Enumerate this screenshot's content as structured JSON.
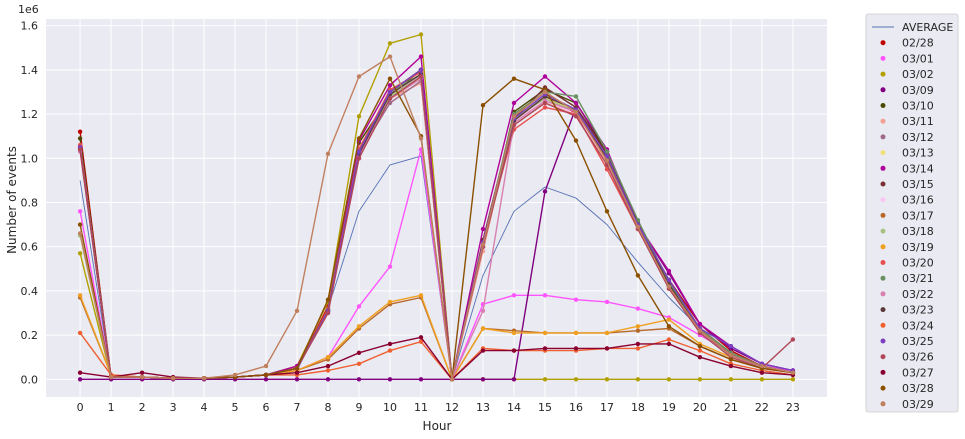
{
  "chart_data": {
    "type": "line",
    "xlabel": "Hour",
    "ylabel": "Number of events",
    "y_multiplier_label": "1e6",
    "x": [
      0,
      1,
      2,
      3,
      4,
      5,
      6,
      7,
      8,
      9,
      10,
      11,
      12,
      13,
      14,
      15,
      16,
      17,
      18,
      19,
      20,
      21,
      22,
      23
    ],
    "xlim": [
      -1.1,
      24.1
    ],
    "ylim": [
      -0.08,
      1.63
    ],
    "y_ticks": [
      "0.0",
      "0.2",
      "0.4",
      "0.6",
      "0.8",
      "1.0",
      "1.2",
      "1.4",
      "1.6"
    ],
    "y_tick_values": [
      0,
      0.2,
      0.4,
      0.6,
      0.8,
      1.0,
      1.2,
      1.4,
      1.6
    ],
    "grid": true,
    "legend_position": "outside-right",
    "series": [
      {
        "name": "AVERAGE",
        "color": "#5470b3",
        "style": "thin-line",
        "values": [
          0.9,
          0.01,
          0.01,
          0.005,
          0.005,
          0.01,
          0.02,
          0.04,
          0.32,
          0.76,
          0.97,
          1.01,
          0.0,
          0.47,
          0.76,
          0.87,
          0.82,
          0.7,
          0.53,
          0.37,
          0.23,
          0.12,
          0.06,
          0.03
        ]
      },
      {
        "name": "02/28",
        "color": "#c00000",
        "values": [
          1.12,
          0.01,
          0.01,
          0.005,
          0.005,
          0.01,
          0.02,
          0.05,
          0.33,
          1.0,
          1.3,
          1.4,
          0.0,
          0.63,
          1.19,
          1.3,
          1.2,
          1.0,
          0.7,
          0.45,
          0.25,
          0.13,
          0.06,
          0.03
        ]
      },
      {
        "name": "03/01",
        "color": "#ff55ff",
        "values": [
          0.76,
          0.01,
          0.01,
          0.005,
          0.005,
          0.01,
          0.02,
          0.04,
          0.1,
          0.33,
          0.51,
          1.04,
          0.0,
          0.34,
          0.38,
          0.38,
          0.36,
          0.35,
          0.32,
          0.28,
          0.2,
          0.12,
          0.06,
          0.04
        ]
      },
      {
        "name": "03/02",
        "color": "#b2a000",
        "values": [
          0.57,
          0.01,
          0.01,
          0.005,
          0.005,
          0.01,
          0.02,
          0.06,
          0.35,
          1.19,
          1.52,
          1.56,
          0.0,
          0.0,
          0.0,
          0.0,
          0.0,
          0.0,
          0.0,
          0.0,
          0.0,
          0.0,
          0.0,
          0.0
        ]
      },
      {
        "name": "03/09",
        "color": "#800080",
        "values": [
          0.0,
          0.0,
          0.0,
          0.0,
          0.0,
          0.0,
          0.0,
          0.0,
          0.0,
          0.0,
          0.0,
          0.0,
          0.0,
          0.0,
          0.0,
          0.85,
          1.23,
          1.03,
          0.7,
          0.48,
          0.25,
          0.14,
          0.07,
          0.04
        ]
      },
      {
        "name": "03/10",
        "color": "#4a4a00",
        "values": [
          1.09,
          0.01,
          0.01,
          0.005,
          0.005,
          0.01,
          0.02,
          0.05,
          0.32,
          1.07,
          1.28,
          1.4,
          0.0,
          0.6,
          1.21,
          1.31,
          1.25,
          1.03,
          0.71,
          0.43,
          0.23,
          0.12,
          0.06,
          0.03
        ]
      },
      {
        "name": "03/11",
        "color": "#f4a090",
        "values": [
          1.05,
          0.01,
          0.01,
          0.005,
          0.005,
          0.01,
          0.02,
          0.05,
          0.31,
          1.05,
          1.27,
          1.34,
          0.0,
          0.58,
          1.18,
          1.25,
          1.2,
          0.98,
          0.68,
          0.42,
          0.22,
          0.11,
          0.05,
          0.03
        ]
      },
      {
        "name": "03/12",
        "color": "#a06a8a",
        "values": [
          1.04,
          0.01,
          0.01,
          0.005,
          0.005,
          0.01,
          0.02,
          0.05,
          0.3,
          1.02,
          1.25,
          1.35,
          0.0,
          0.6,
          1.17,
          1.28,
          1.21,
          0.99,
          0.69,
          0.43,
          0.22,
          0.11,
          0.06,
          0.03
        ]
      },
      {
        "name": "03/13",
        "color": "#f2e07a",
        "values": [
          1.06,
          0.01,
          0.01,
          0.005,
          0.005,
          0.01,
          0.02,
          0.05,
          0.31,
          1.03,
          1.3,
          1.36,
          0.0,
          0.62,
          1.19,
          1.27,
          1.22,
          1.0,
          0.7,
          0.42,
          0.23,
          0.12,
          0.06,
          0.03
        ]
      },
      {
        "name": "03/14",
        "color": "#b0009a",
        "values": [
          1.05,
          0.01,
          0.01,
          0.005,
          0.005,
          0.01,
          0.02,
          0.06,
          0.31,
          1.08,
          1.33,
          1.46,
          0.0,
          0.68,
          1.25,
          1.37,
          1.25,
          1.04,
          0.7,
          0.49,
          0.25,
          0.15,
          0.07,
          0.04
        ]
      },
      {
        "name": "03/15",
        "color": "#7a2f30",
        "values": [
          1.05,
          0.01,
          0.01,
          0.005,
          0.005,
          0.01,
          0.02,
          0.05,
          0.31,
          1.03,
          1.3,
          1.4,
          0.0,
          0.63,
          1.18,
          1.32,
          1.23,
          1.02,
          0.7,
          0.44,
          0.23,
          0.12,
          0.06,
          0.03
        ]
      },
      {
        "name": "03/16",
        "color": "#f8c8f0",
        "values": [
          1.04,
          0.01,
          0.01,
          0.005,
          0.005,
          0.01,
          0.02,
          0.05,
          0.3,
          1.0,
          1.28,
          1.38,
          0.0,
          0.61,
          1.17,
          1.26,
          1.2,
          0.99,
          0.69,
          0.42,
          0.22,
          0.11,
          0.05,
          0.03
        ]
      },
      {
        "name": "03/17",
        "color": "#b8692a",
        "values": [
          0.37,
          0.02,
          0.01,
          0.005,
          0.005,
          0.01,
          0.02,
          0.04,
          0.09,
          0.23,
          0.34,
          0.37,
          0.0,
          0.23,
          0.22,
          0.21,
          0.21,
          0.21,
          0.22,
          0.23,
          0.15,
          0.09,
          0.05,
          0.03
        ]
      },
      {
        "name": "03/18",
        "color": "#a8c080",
        "values": [
          0.65,
          0.01,
          0.01,
          0.005,
          0.005,
          0.01,
          0.02,
          0.05,
          0.3,
          1.02,
          1.28,
          1.37,
          0.0,
          0.62,
          1.18,
          1.27,
          1.21,
          1.0,
          0.69,
          0.43,
          0.22,
          0.11,
          0.06,
          0.03
        ]
      },
      {
        "name": "03/19",
        "color": "#f0a020",
        "values": [
          0.38,
          0.02,
          0.01,
          0.005,
          0.005,
          0.01,
          0.02,
          0.04,
          0.1,
          0.24,
          0.35,
          0.38,
          0.0,
          0.23,
          0.21,
          0.21,
          0.21,
          0.21,
          0.24,
          0.27,
          0.16,
          0.1,
          0.05,
          0.03
        ]
      },
      {
        "name": "03/20",
        "color": "#e85050",
        "values": [
          1.06,
          0.01,
          0.01,
          0.005,
          0.005,
          0.01,
          0.02,
          0.05,
          0.32,
          1.04,
          1.31,
          1.39,
          0.0,
          0.62,
          1.13,
          1.23,
          1.2,
          0.95,
          0.68,
          0.42,
          0.22,
          0.11,
          0.05,
          0.03
        ]
      },
      {
        "name": "03/21",
        "color": "#6a8f62",
        "values": [
          1.04,
          0.01,
          0.01,
          0.005,
          0.005,
          0.01,
          0.02,
          0.05,
          0.31,
          1.03,
          1.3,
          1.38,
          0.0,
          0.62,
          1.2,
          1.3,
          1.28,
          1.03,
          0.72,
          0.44,
          0.23,
          0.12,
          0.06,
          0.03
        ]
      },
      {
        "name": "03/22",
        "color": "#d880b0",
        "values": [
          1.03,
          0.01,
          0.01,
          0.005,
          0.005,
          0.01,
          0.02,
          0.05,
          0.3,
          1.01,
          1.27,
          1.36,
          0.0,
          0.31,
          1.16,
          1.26,
          1.21,
          0.99,
          0.69,
          0.42,
          0.22,
          0.11,
          0.05,
          0.03
        ]
      },
      {
        "name": "03/23",
        "color": "#5a3a3a",
        "values": [
          1.04,
          0.01,
          0.01,
          0.005,
          0.005,
          0.01,
          0.02,
          0.05,
          0.31,
          1.02,
          1.29,
          1.38,
          0.0,
          0.62,
          1.17,
          1.28,
          1.22,
          1.0,
          0.7,
          0.43,
          0.22,
          0.11,
          0.06,
          0.03
        ]
      },
      {
        "name": "03/24",
        "color": "#f06030",
        "values": [
          0.21,
          0.02,
          0.01,
          0.005,
          0.005,
          0.01,
          0.02,
          0.02,
          0.04,
          0.07,
          0.13,
          0.17,
          0.0,
          0.14,
          0.13,
          0.13,
          0.13,
          0.14,
          0.14,
          0.18,
          0.13,
          0.07,
          0.04,
          0.02
        ]
      },
      {
        "name": "03/25",
        "color": "#7a40c0",
        "values": [
          1.05,
          0.01,
          0.01,
          0.005,
          0.005,
          0.01,
          0.02,
          0.05,
          0.31,
          1.03,
          1.3,
          1.4,
          0.0,
          0.62,
          1.18,
          1.29,
          1.22,
          1.01,
          0.7,
          0.45,
          0.23,
          0.15,
          0.07,
          0.04
        ]
      },
      {
        "name": "03/26",
        "color": "#b04858",
        "values": [
          1.04,
          0.01,
          0.01,
          0.005,
          0.005,
          0.01,
          0.02,
          0.05,
          0.3,
          1.0,
          1.27,
          1.37,
          0.0,
          0.6,
          1.15,
          1.25,
          1.19,
          0.97,
          0.68,
          0.41,
          0.21,
          0.1,
          0.05,
          0.18
        ]
      },
      {
        "name": "03/27",
        "color": "#8a0030",
        "values": [
          0.03,
          0.01,
          0.03,
          0.01,
          0.005,
          0.01,
          0.02,
          0.03,
          0.06,
          0.12,
          0.16,
          0.19,
          0.0,
          0.13,
          0.13,
          0.14,
          0.14,
          0.14,
          0.16,
          0.16,
          0.1,
          0.06,
          0.03,
          0.02
        ]
      },
      {
        "name": "03/28",
        "color": "#8a5000",
        "values": [
          0.7,
          0.01,
          0.01,
          0.005,
          0.005,
          0.01,
          0.02,
          0.05,
          0.36,
          1.09,
          1.36,
          1.1,
          0.0,
          1.24,
          1.36,
          1.31,
          1.08,
          0.76,
          0.47,
          0.24,
          0.15,
          0.09,
          0.05,
          0.03
        ]
      },
      {
        "name": "03/29",
        "color": "#c08060",
        "values": [
          0.66,
          0.01,
          0.01,
          0.005,
          0.005,
          0.02,
          0.06,
          0.31,
          1.02,
          1.37,
          1.46,
          1.09,
          0.0,
          0.61,
          1.19,
          1.3,
          1.21,
          0.99,
          0.69,
          0.42,
          0.22,
          0.11,
          0.06,
          0.03
        ]
      }
    ]
  }
}
